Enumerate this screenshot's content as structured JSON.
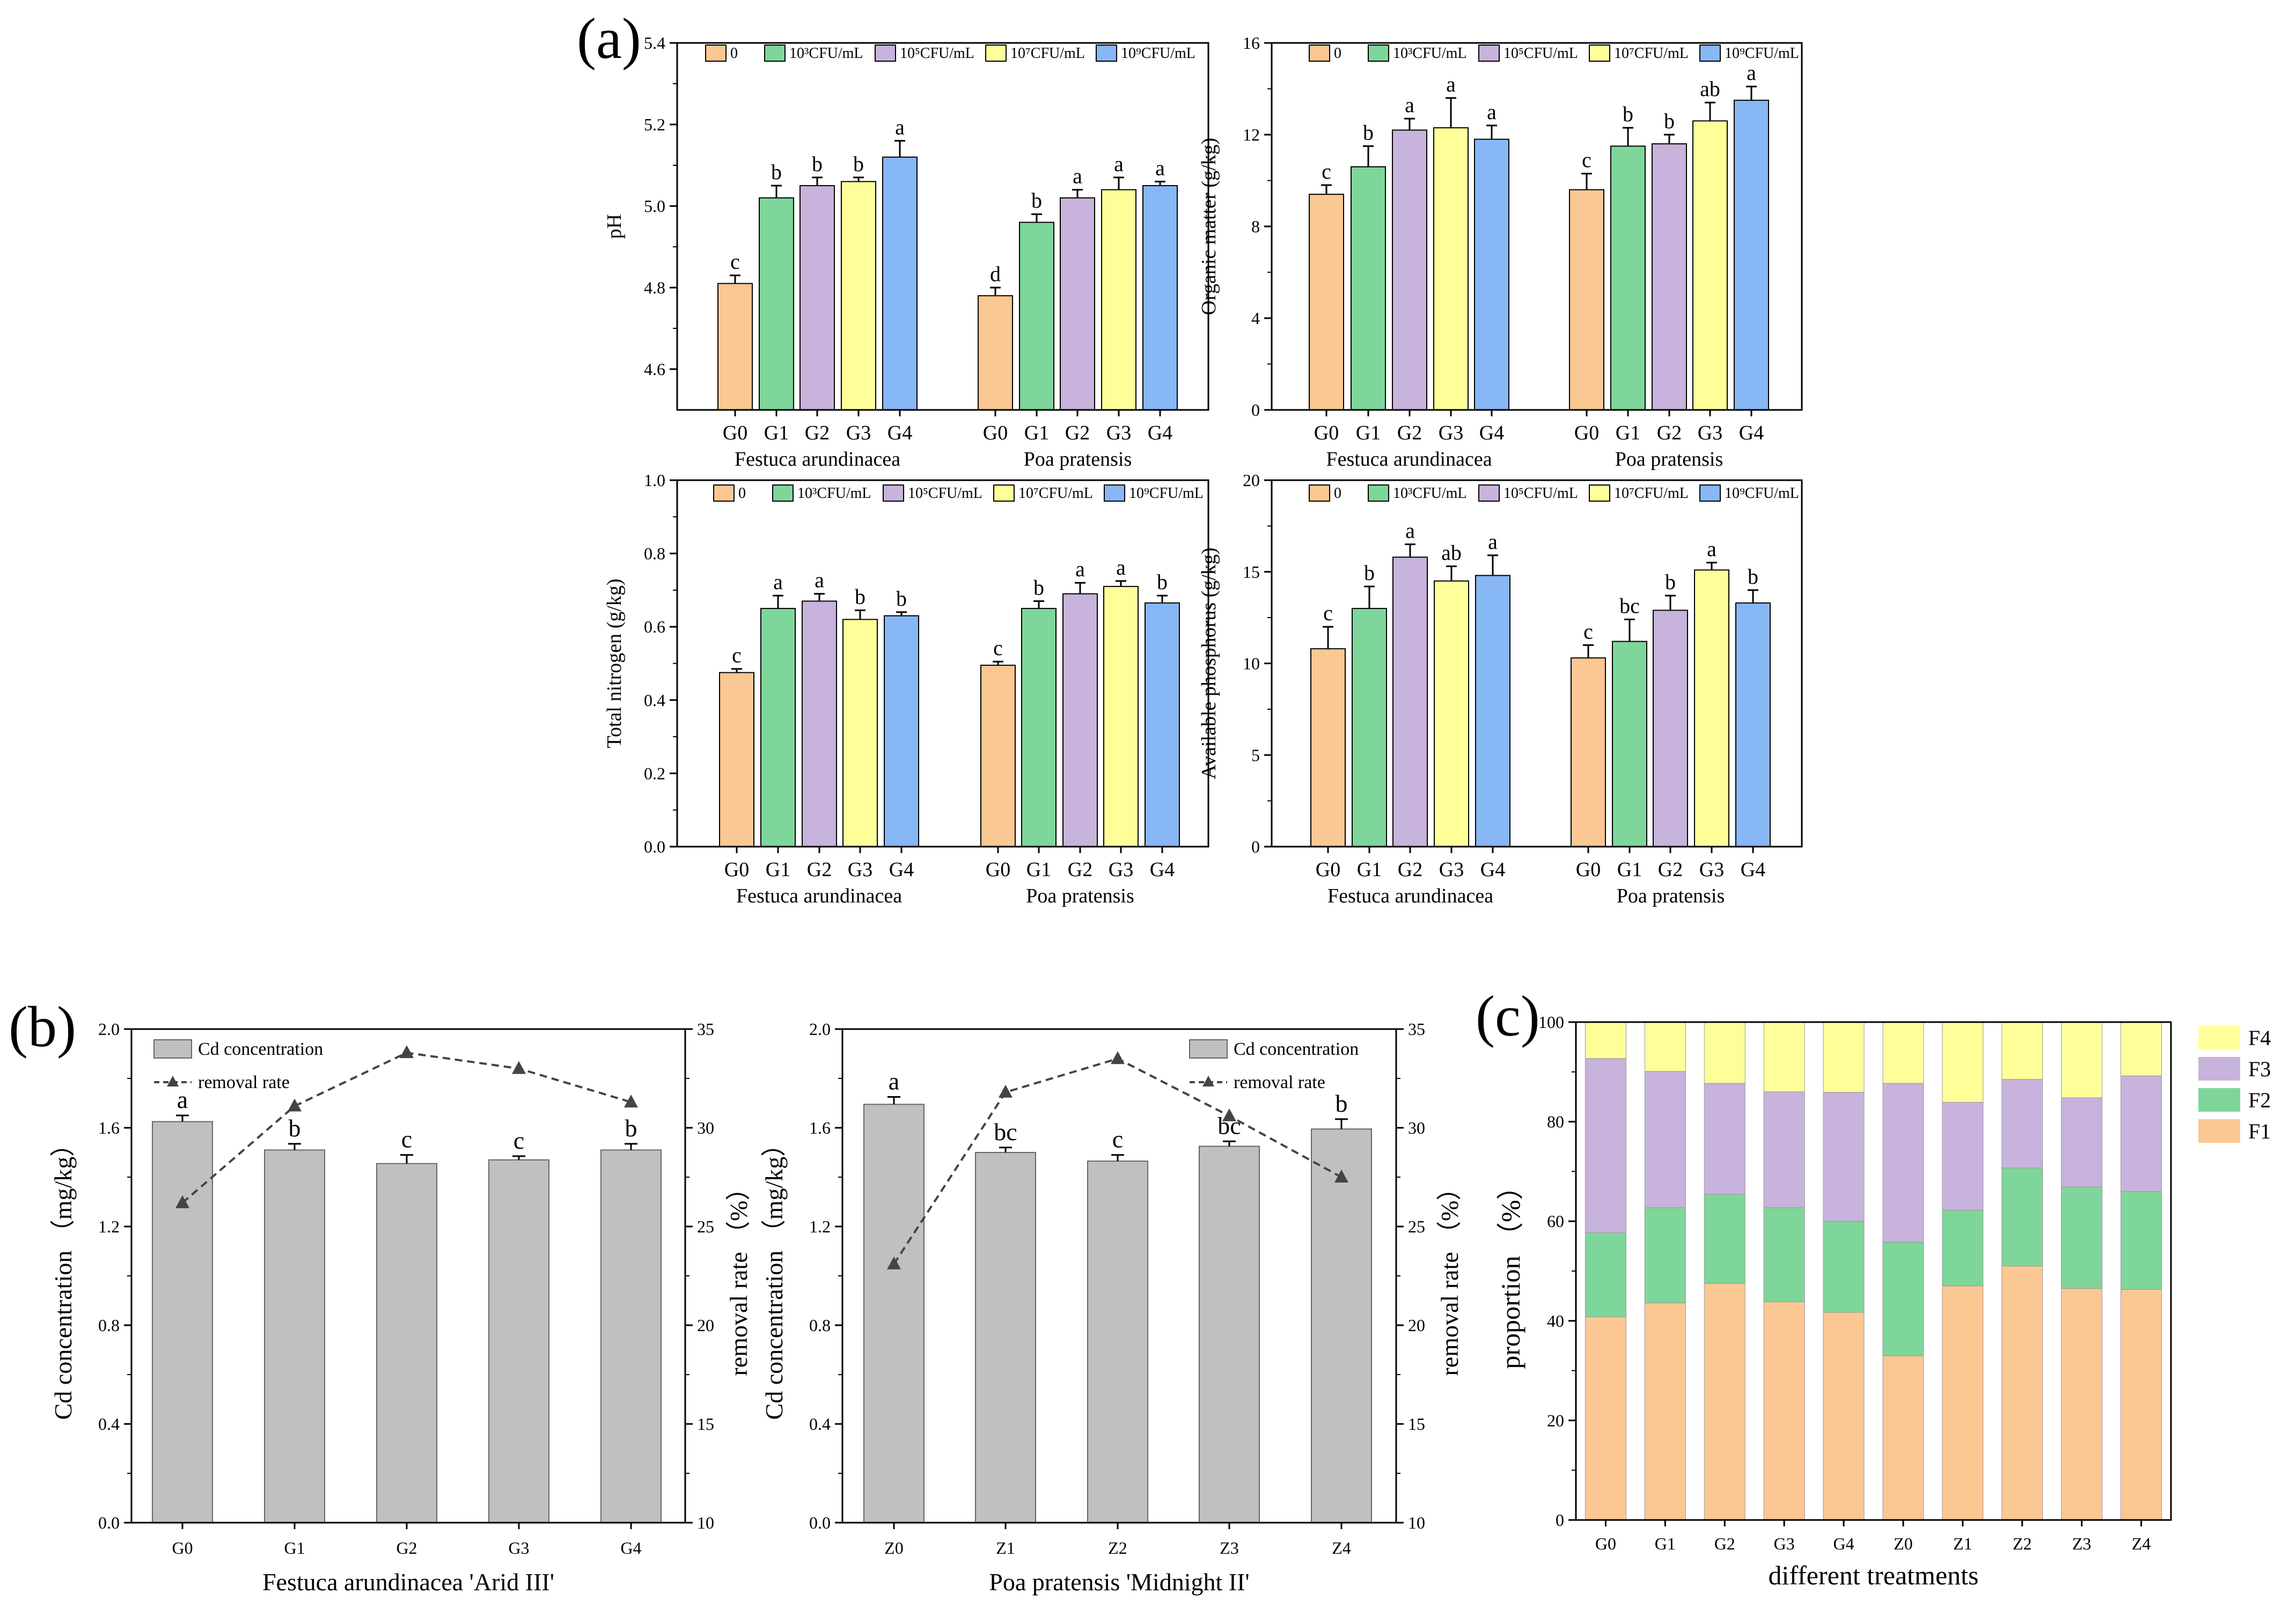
{
  "figure": {
    "panel_labels": [
      "(a)",
      "(b)",
      "(c)"
    ]
  },
  "colors": {
    "g0": "#FBC792",
    "g1": "#7ED69A",
    "g2": "#C7B3DB",
    "g3": "#FFFF99",
    "g4": "#87B7F5",
    "gray_bar": "#C0C0C0",
    "line": "#444444",
    "F1": "#FBC792",
    "F2": "#7ED69A",
    "F3": "#C7B3DB",
    "F4": "#FFFF99"
  },
  "chart_data": [
    {
      "id": "ph",
      "type": "bar",
      "ylabel": "pH",
      "ylim": [
        4.5,
        5.4
      ],
      "yticks": [
        "4.6",
        "4.8",
        "5.0",
        "5.2",
        "5.4"
      ],
      "legend": [
        "0",
        "10³CFU/mL",
        "10⁵CFU/mL",
        "10⁷CFU/mL",
        "10⁹CFU/mL"
      ],
      "categories": [
        "G0",
        "G1",
        "G2",
        "G3",
        "G4"
      ],
      "groups": [
        {
          "name": "Festuca arundinacea",
          "values": [
            4.81,
            5.02,
            5.05,
            5.06,
            5.12
          ],
          "errors": [
            0.02,
            0.03,
            0.02,
            0.01,
            0.04
          ],
          "letters": [
            "c",
            "b",
            "b",
            "b",
            "a"
          ]
        },
        {
          "name": "Poa pratensis",
          "values": [
            4.78,
            4.96,
            5.02,
            5.04,
            5.05
          ],
          "errors": [
            0.02,
            0.02,
            0.02,
            0.03,
            0.01
          ],
          "letters": [
            "d",
            "b",
            "a",
            "a",
            "a"
          ]
        }
      ]
    },
    {
      "id": "om",
      "type": "bar",
      "ylabel": "Organic matter (g/kg)",
      "ylim": [
        0,
        16
      ],
      "yticks": [
        "0",
        "4",
        "8",
        "12",
        "16"
      ],
      "legend": [
        "0",
        "10³CFU/mL",
        "10⁵CFU/mL",
        "10⁷CFU/mL",
        "10⁹CFU/mL"
      ],
      "categories": [
        "G0",
        "G1",
        "G2",
        "G3",
        "G4"
      ],
      "groups": [
        {
          "name": "Festuca arundinacea",
          "values": [
            9.4,
            10.6,
            12.2,
            12.3,
            11.8
          ],
          "errors": [
            0.4,
            0.9,
            0.5,
            1.3,
            0.6
          ],
          "letters": [
            "c",
            "b",
            "a",
            "a",
            "a"
          ]
        },
        {
          "name": "Poa pratensis",
          "values": [
            9.6,
            11.5,
            11.6,
            12.6,
            13.5
          ],
          "errors": [
            0.7,
            0.8,
            0.4,
            0.8,
            0.6
          ],
          "letters": [
            "c",
            "b",
            "b",
            "ab",
            "a"
          ]
        }
      ]
    },
    {
      "id": "tn",
      "type": "bar",
      "ylabel": "Total nitrogen (g/kg)",
      "ylim": [
        0,
        1.0
      ],
      "yticks": [
        "0.0",
        "0.2",
        "0.4",
        "0.6",
        "0.8",
        "1.0"
      ],
      "legend": [
        "0",
        "10³CFU/mL",
        "10⁵CFU/mL",
        "10⁷CFU/mL",
        "10⁹CFU/mL"
      ],
      "categories": [
        "G0",
        "G1",
        "G2",
        "G3",
        "G4"
      ],
      "groups": [
        {
          "name": "Festuca arundinacea",
          "values": [
            0.475,
            0.65,
            0.67,
            0.62,
            0.63
          ],
          "errors": [
            0.01,
            0.035,
            0.02,
            0.025,
            0.01
          ],
          "letters": [
            "c",
            "a",
            "a",
            "b",
            "b"
          ]
        },
        {
          "name": "Poa pratensis",
          "values": [
            0.495,
            0.65,
            0.69,
            0.71,
            0.665
          ],
          "errors": [
            0.01,
            0.02,
            0.03,
            0.015,
            0.02
          ],
          "letters": [
            "c",
            "b",
            "a",
            "a",
            "b"
          ]
        }
      ]
    },
    {
      "id": "ap",
      "type": "bar",
      "ylabel": "Available phosphorus (g/kg)",
      "ylim": [
        0,
        20
      ],
      "yticks": [
        "0",
        "5",
        "10",
        "15",
        "20"
      ],
      "legend": [
        "0",
        "10³CFU/mL",
        "10⁵CFU/mL",
        "10⁷CFU/mL",
        "10⁹CFU/mL"
      ],
      "categories": [
        "G0",
        "G1",
        "G2",
        "G3",
        "G4"
      ],
      "groups": [
        {
          "name": "Festuca arundinacea",
          "values": [
            10.8,
            13.0,
            15.8,
            14.5,
            14.8
          ],
          "errors": [
            1.2,
            1.2,
            0.7,
            0.8,
            1.1
          ],
          "letters": [
            "c",
            "b",
            "a",
            "ab",
            "a"
          ]
        },
        {
          "name": "Poa pratensis",
          "values": [
            10.3,
            11.2,
            12.9,
            15.1,
            13.3
          ],
          "errors": [
            0.7,
            1.2,
            0.8,
            0.4,
            0.7
          ],
          "letters": [
            "c",
            "bc",
            "b",
            "a",
            "b"
          ]
        }
      ]
    },
    {
      "id": "cd_festuca",
      "type": "bar+line",
      "xlabel": "Festuca arundinacea 'Arid III'",
      "ylabel": "Cd concentration （mg/kg）",
      "y2label": "removal rate （%）",
      "ylim": [
        0,
        2.0
      ],
      "yticks": [
        "0.0",
        "0.4",
        "0.8",
        "1.2",
        "1.6",
        "2.0"
      ],
      "y2lim": [
        10,
        35
      ],
      "y2ticks": [
        "10",
        "15",
        "20",
        "25",
        "30",
        "35"
      ],
      "legend": [
        "Cd concentration",
        "removal rate"
      ],
      "categories": [
        "G0",
        "G1",
        "G2",
        "G3",
        "G4"
      ],
      "values": [
        1.625,
        1.51,
        1.455,
        1.47,
        1.51
      ],
      "errors": [
        0.025,
        0.025,
        0.035,
        0.015,
        0.025
      ],
      "letters": [
        "a",
        "b",
        "c",
        "c",
        "b"
      ],
      "removal_rate": [
        26.2,
        31.1,
        33.8,
        33.0,
        31.3
      ]
    },
    {
      "id": "cd_poa",
      "type": "bar+line",
      "xlabel": "Poa pratensis 'Midnight II'",
      "ylabel": "Cd concentration （mg/kg）",
      "y2label": "removal rate （%）",
      "ylim": [
        0,
        2.0
      ],
      "yticks": [
        "0.0",
        "0.4",
        "0.8",
        "1.2",
        "1.6",
        "2.0"
      ],
      "y2lim": [
        10,
        35
      ],
      "y2ticks": [
        "10",
        "15",
        "20",
        "25",
        "30",
        "35"
      ],
      "legend": [
        "Cd concentration",
        "removal rate"
      ],
      "categories": [
        "Z0",
        "Z1",
        "Z2",
        "Z3",
        "Z4"
      ],
      "values": [
        1.695,
        1.5,
        1.465,
        1.525,
        1.595
      ],
      "errors": [
        0.03,
        0.02,
        0.025,
        0.02,
        0.04
      ],
      "letters": [
        "a",
        "bc",
        "c",
        "bc",
        "b"
      ],
      "removal_rate": [
        23.1,
        31.8,
        33.5,
        30.6,
        27.5
      ]
    },
    {
      "id": "fractions",
      "type": "stacked_bar",
      "xlabel": "different treatments",
      "ylabel": "proportion （%）",
      "ylim": [
        0,
        100
      ],
      "yticks": [
        "0",
        "20",
        "40",
        "60",
        "80",
        "100"
      ],
      "categories": [
        "G0",
        "G1",
        "G2",
        "G3",
        "G4",
        "Z0",
        "Z1",
        "Z2",
        "Z3",
        "Z4"
      ],
      "legend": [
        "F4",
        "F3",
        "F2",
        "F1"
      ],
      "series": [
        {
          "name": "F1",
          "values": [
            40.8,
            43.6,
            47.5,
            43.8,
            41.7,
            33.0,
            47.0,
            51.0,
            46.5,
            46.3
          ]
        },
        {
          "name": "F2",
          "values": [
            16.9,
            19.1,
            17.9,
            18.9,
            18.3,
            22.8,
            15.2,
            19.7,
            20.4,
            19.7
          ]
        },
        {
          "name": "F3",
          "values": [
            35.0,
            27.4,
            22.3,
            23.3,
            25.9,
            31.9,
            21.7,
            17.8,
            17.9,
            23.2
          ]
        },
        {
          "name": "F4",
          "values": [
            7.3,
            9.9,
            12.3,
            14.0,
            14.1,
            12.3,
            16.1,
            11.5,
            15.2,
            10.8
          ]
        }
      ]
    }
  ]
}
